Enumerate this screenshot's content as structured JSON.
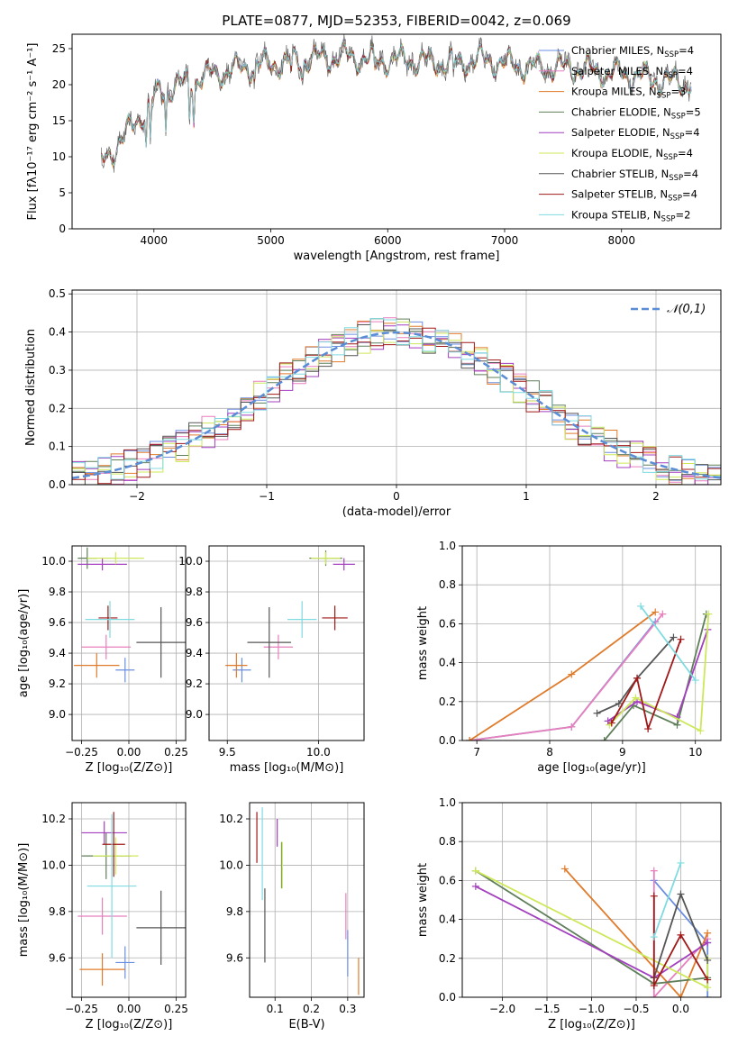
{
  "title": "PLATE=0877, MJD=52353, FIBERID=0042, z=0.069",
  "chart_data": [
    {
      "type": "line",
      "xlabel": "wavelength [Angstrom, rest frame]",
      "ylabel": "Flux [fλ10⁻¹⁷ erg cm⁻² s⁻¹ A⁻¹]",
      "xlim": [
        3300,
        8850
      ],
      "ylim": [
        0,
        27
      ],
      "xticks": [
        4000,
        5000,
        6000,
        7000,
        8000
      ],
      "yticks": [
        0,
        5,
        10,
        15,
        20,
        25
      ],
      "legend_position": "upper-right",
      "legend": [
        {
          "name": "Chabrier MILES, N",
          "sub": "SSP",
          "suffix": "=4",
          "color": "#6b8fe0"
        },
        {
          "name": "Salpeter MILES, N",
          "sub": "SSP",
          "suffix": "=4",
          "color": "#e87fbd"
        },
        {
          "name": "Kroupa MILES, N",
          "sub": "SSP",
          "suffix": "=3",
          "color": "#e07b2b"
        },
        {
          "name": "Chabrier ELODIE, N",
          "sub": "SSP",
          "suffix": "=5",
          "color": "#5f7f5a"
        },
        {
          "name": "Salpeter ELODIE, N",
          "sub": "SSP",
          "suffix": "=4",
          "color": "#a43fbf"
        },
        {
          "name": "Kroupa ELODIE, N",
          "sub": "SSP",
          "suffix": "=4",
          "color": "#cde85a"
        },
        {
          "name": "Chabrier STELIB, N",
          "sub": "SSP",
          "suffix": "=4",
          "color": "#555555"
        },
        {
          "name": "Salpeter STELIB, N",
          "sub": "SSP",
          "suffix": "=4",
          "color": "#a01818"
        },
        {
          "name": "Kroupa STELIB, N",
          "sub": "SSP",
          "suffix": "=2",
          "color": "#7fdbe0"
        }
      ],
      "continuum_knots": {
        "x": [
          3550,
          3700,
          3900,
          4050,
          4300,
          4500,
          4800,
          5000,
          5300,
          5600,
          5900,
          6200,
          6500,
          6800,
          7000,
          7200,
          7400,
          7600,
          7800,
          8000,
          8300,
          8600
        ],
        "y": [
          9,
          12,
          16,
          19,
          20.5,
          21.5,
          22.5,
          23,
          23.5,
          24,
          23.5,
          23.5,
          23,
          23.5,
          23,
          22.5,
          22.5,
          22.3,
          21.8,
          21.5,
          20.8,
          20.3
        ]
      },
      "absorption_lines": [
        3934,
        3969,
        4102,
        4304,
        4341,
        4861,
        5175,
        5270,
        5890,
        6563
      ]
    },
    {
      "type": "step-histogram",
      "xlabel": "(data-model)/error",
      "ylabel": "Normed distribution",
      "xlim": [
        -2.5,
        2.5
      ],
      "ylim": [
        0,
        0.51
      ],
      "xticks": [
        -2,
        -1,
        0,
        1,
        2
      ],
      "yticks": [
        0,
        0.1,
        0.2,
        0.3,
        0.4,
        0.5
      ],
      "bin_width": 0.1,
      "reference_curve": {
        "name": "𝒩(0,1)",
        "color": "#5b8dd6",
        "style": "dashed"
      },
      "legend_position": "upper-right"
    },
    {
      "type": "scatter-errorbars",
      "xlabel": "Z [log₁₀(Z/Z⊙)]",
      "ylabel": "age  [log₁₀(age/yr)]",
      "xlim": [
        -0.3,
        0.3
      ],
      "ylim": [
        8.83,
        10.1
      ],
      "xticks": [
        -0.25,
        0.0,
        0.25
      ],
      "yticks": [
        9.0,
        9.2,
        9.4,
        9.6,
        9.8,
        10.0
      ],
      "points": [
        {
          "x": -0.02,
          "y": 9.29,
          "xerr": 0.05,
          "yerr": 0.08,
          "color": "#6b8fe0"
        },
        {
          "x": -0.12,
          "y": 9.44,
          "xerr": 0.13,
          "yerr": 0.08,
          "color": "#e87fbd"
        },
        {
          "x": -0.17,
          "y": 9.32,
          "xerr": 0.12,
          "yerr": 0.08,
          "color": "#e07b2b"
        },
        {
          "x": -0.22,
          "y": 10.02,
          "xerr": 0.05,
          "yerr": 0.07,
          "color": "#5f7f5a"
        },
        {
          "x": -0.14,
          "y": 9.98,
          "xerr": 0.13,
          "yerr": 0.04,
          "color": "#a43fbf"
        },
        {
          "x": -0.07,
          "y": 10.02,
          "xerr": 0.15,
          "yerr": 0.04,
          "color": "#cde85a"
        },
        {
          "x": 0.17,
          "y": 9.47,
          "xerr": 0.13,
          "yerr": 0.23,
          "color": "#555555"
        },
        {
          "x": -0.11,
          "y": 9.63,
          "xerr": 0.05,
          "yerr": 0.08,
          "color": "#a01818"
        },
        {
          "x": -0.1,
          "y": 9.62,
          "xerr": 0.13,
          "yerr": 0.12,
          "color": "#7fdbe0"
        }
      ]
    },
    {
      "type": "scatter-errorbars",
      "xlabel": "mass [log₁₀(M/M⊙)]",
      "ylabel": "",
      "xlim": [
        9.4,
        10.25
      ],
      "ylim": [
        8.83,
        10.1
      ],
      "xticks": [
        9.5,
        10.0
      ],
      "yticks": [
        9.0,
        9.2,
        9.4,
        9.6,
        9.8,
        10.0
      ],
      "points": [
        {
          "x": 9.58,
          "y": 9.29,
          "xerr": 0.05,
          "yerr": 0.08,
          "color": "#6b8fe0"
        },
        {
          "x": 9.78,
          "y": 9.44,
          "xerr": 0.08,
          "yerr": 0.08,
          "color": "#e87fbd"
        },
        {
          "x": 9.55,
          "y": 9.32,
          "xerr": 0.06,
          "yerr": 0.08,
          "color": "#e07b2b"
        },
        {
          "x": 10.04,
          "y": 10.02,
          "xerr": 0.09,
          "yerr": 0.05,
          "color": "#5f7f5a"
        },
        {
          "x": 10.14,
          "y": 9.98,
          "xerr": 0.06,
          "yerr": 0.04,
          "color": "#a43fbf"
        },
        {
          "x": 10.04,
          "y": 10.02,
          "xerr": 0.08,
          "yerr": 0.04,
          "color": "#cde85a"
        },
        {
          "x": 9.73,
          "y": 9.47,
          "xerr": 0.12,
          "yerr": 0.23,
          "color": "#555555"
        },
        {
          "x": 10.09,
          "y": 9.63,
          "xerr": 0.07,
          "yerr": 0.08,
          "color": "#a01818"
        },
        {
          "x": 9.91,
          "y": 9.62,
          "xerr": 0.08,
          "yerr": 0.12,
          "color": "#7fdbe0"
        }
      ]
    },
    {
      "type": "line",
      "xlabel": "age  [log₁₀(age/yr)]",
      "ylabel": "mass weight",
      "xlim": [
        6.8,
        10.35
      ],
      "ylim": [
        0,
        1
      ],
      "xticks": [
        7,
        8,
        9,
        10
      ],
      "yticks": [
        0.0,
        0.2,
        0.4,
        0.6,
        0.8,
        1.0
      ],
      "series": [
        {
          "color": "#6b8fe0",
          "x": [
            6.9,
            8.3,
            9.45
          ],
          "y": [
            0.0,
            0.07,
            0.61
          ]
        },
        {
          "color": "#e87fbd",
          "x": [
            6.9,
            8.3,
            9.55
          ],
          "y": [
            0.0,
            0.07,
            0.65
          ]
        },
        {
          "color": "#e07b2b",
          "x": [
            6.9,
            8.3,
            9.45
          ],
          "y": [
            0.0,
            0.34,
            0.66
          ]
        },
        {
          "color": "#5f7f5a",
          "x": [
            8.75,
            9.15,
            9.75,
            10.15
          ],
          "y": [
            0.0,
            0.18,
            0.08,
            0.65
          ]
        },
        {
          "color": "#a43fbf",
          "x": [
            8.8,
            9.2,
            9.75,
            10.17
          ],
          "y": [
            0.1,
            0.2,
            0.12,
            0.57
          ]
        },
        {
          "color": "#cde85a",
          "x": [
            8.82,
            9.18,
            10.07,
            10.18
          ],
          "y": [
            0.08,
            0.22,
            0.05,
            0.65
          ]
        },
        {
          "color": "#555555",
          "x": [
            8.65,
            8.95,
            9.2,
            9.7
          ],
          "y": [
            0.14,
            0.19,
            0.32,
            0.53
          ]
        },
        {
          "color": "#a01818",
          "x": [
            8.85,
            9.2,
            9.35,
            9.8
          ],
          "y": [
            0.09,
            0.32,
            0.06,
            0.52
          ]
        },
        {
          "color": "#7fdbe0",
          "x": [
            9.25,
            10.0
          ],
          "y": [
            0.69,
            0.31
          ]
        }
      ]
    },
    {
      "type": "scatter-errorbars",
      "xlabel": "Z [log₁₀(Z/Z⊙)]",
      "ylabel": "mass [log₁₀(M/M⊙)]",
      "xlim": [
        -0.3,
        0.3
      ],
      "ylim": [
        9.43,
        10.27
      ],
      "xticks": [
        -0.25,
        0.0,
        0.25
      ],
      "yticks": [
        9.6,
        9.8,
        10.0,
        10.2
      ],
      "points": [
        {
          "x": -0.02,
          "y": 9.58,
          "xerr": 0.05,
          "yerr": 0.07,
          "color": "#6b8fe0"
        },
        {
          "x": -0.14,
          "y": 9.78,
          "xerr": 0.13,
          "yerr": 0.08,
          "color": "#e87fbd"
        },
        {
          "x": -0.14,
          "y": 9.55,
          "xerr": 0.12,
          "yerr": 0.07,
          "color": "#e07b2b"
        },
        {
          "x": -0.12,
          "y": 10.04,
          "xerr": 0.13,
          "yerr": 0.1,
          "color": "#5f7f5a"
        },
        {
          "x": -0.13,
          "y": 10.14,
          "xerr": 0.12,
          "yerr": 0.05,
          "color": "#a43fbf"
        },
        {
          "x": -0.07,
          "y": 10.04,
          "xerr": 0.12,
          "yerr": 0.08,
          "color": "#cde85a"
        },
        {
          "x": 0.17,
          "y": 9.73,
          "xerr": 0.13,
          "yerr": 0.16,
          "color": "#555555"
        },
        {
          "x": -0.08,
          "y": 10.09,
          "xerr": 0.06,
          "yerr": 0.14,
          "color": "#a01818"
        },
        {
          "x": -0.09,
          "y": 9.91,
          "xerr": 0.13,
          "yerr": 0.31,
          "color": "#7fdbe0"
        }
      ]
    },
    {
      "type": "vertical-errorbars",
      "xlabel": "E(B-V)",
      "ylabel": "",
      "xlim": [
        0.03,
        0.345
      ],
      "ylim": [
        9.43,
        10.27
      ],
      "xticks": [
        0.1,
        0.2,
        0.3
      ],
      "yticks": [
        9.6,
        9.8,
        10.0,
        10.2
      ],
      "points": [
        {
          "x": 0.3,
          "y": 9.62,
          "yerr": 0.1,
          "color": "#6b8fe0"
        },
        {
          "x": 0.295,
          "y": 9.78,
          "yerr": 0.1,
          "color": "#e87fbd"
        },
        {
          "x": 0.33,
          "y": 9.52,
          "yerr": 0.08,
          "color": "#e07b2b"
        },
        {
          "x": 0.118,
          "y": 10.0,
          "yerr": 0.1,
          "color": "#5f7f5a"
        },
        {
          "x": 0.106,
          "y": 10.14,
          "yerr": 0.06,
          "color": "#a43fbf"
        },
        {
          "x": 0.12,
          "y": 10.0,
          "yerr": 0.1,
          "color": "#cde85a"
        },
        {
          "x": 0.072,
          "y": 9.74,
          "yerr": 0.16,
          "color": "#555555"
        },
        {
          "x": 0.05,
          "y": 10.12,
          "yerr": 0.11,
          "color": "#a01818"
        },
        {
          "x": 0.065,
          "y": 10.05,
          "yerr": 0.2,
          "color": "#7fdbe0"
        }
      ]
    },
    {
      "type": "line",
      "xlabel": "Z [log₁₀(Z/Z⊙)]",
      "ylabel": "mass weight",
      "xlim": [
        -2.45,
        0.45
      ],
      "ylim": [
        0,
        1
      ],
      "xticks": [
        -2.0,
        -1.5,
        -1.0,
        -0.5,
        0.0
      ],
      "yticks": [
        0.0,
        0.2,
        0.4,
        0.6,
        0.8,
        1.0
      ],
      "series": [
        {
          "color": "#6b8fe0",
          "x": [
            -0.3,
            0.3,
            0.3
          ],
          "y": [
            0.6,
            0.28,
            0.0
          ]
        },
        {
          "color": "#e87fbd",
          "x": [
            -0.3,
            -0.3,
            0.3
          ],
          "y": [
            0.65,
            0.0,
            0.3
          ]
        },
        {
          "color": "#e07b2b",
          "x": [
            -1.3,
            0.0,
            0.3
          ],
          "y": [
            0.66,
            0.0,
            0.33
          ]
        },
        {
          "color": "#5f7f5a",
          "x": [
            -2.3,
            -0.3,
            0.3
          ],
          "y": [
            0.65,
            0.07,
            0.1
          ]
        },
        {
          "color": "#a43fbf",
          "x": [
            -2.3,
            -0.3,
            0.3
          ],
          "y": [
            0.57,
            0.1,
            0.28
          ]
        },
        {
          "color": "#cde85a",
          "x": [
            -2.3,
            0.3,
            0.3
          ],
          "y": [
            0.65,
            0.05,
            0.2
          ]
        },
        {
          "color": "#555555",
          "x": [
            -0.3,
            0.0,
            0.3
          ],
          "y": [
            0.1,
            0.53,
            0.19
          ]
        },
        {
          "color": "#a01818",
          "x": [
            -0.3,
            -0.3,
            0.0,
            0.3
          ],
          "y": [
            0.52,
            0.06,
            0.32,
            0.09
          ]
        },
        {
          "color": "#7fdbe0",
          "x": [
            -0.3,
            0.0
          ],
          "y": [
            0.31,
            0.69
          ]
        }
      ]
    }
  ]
}
